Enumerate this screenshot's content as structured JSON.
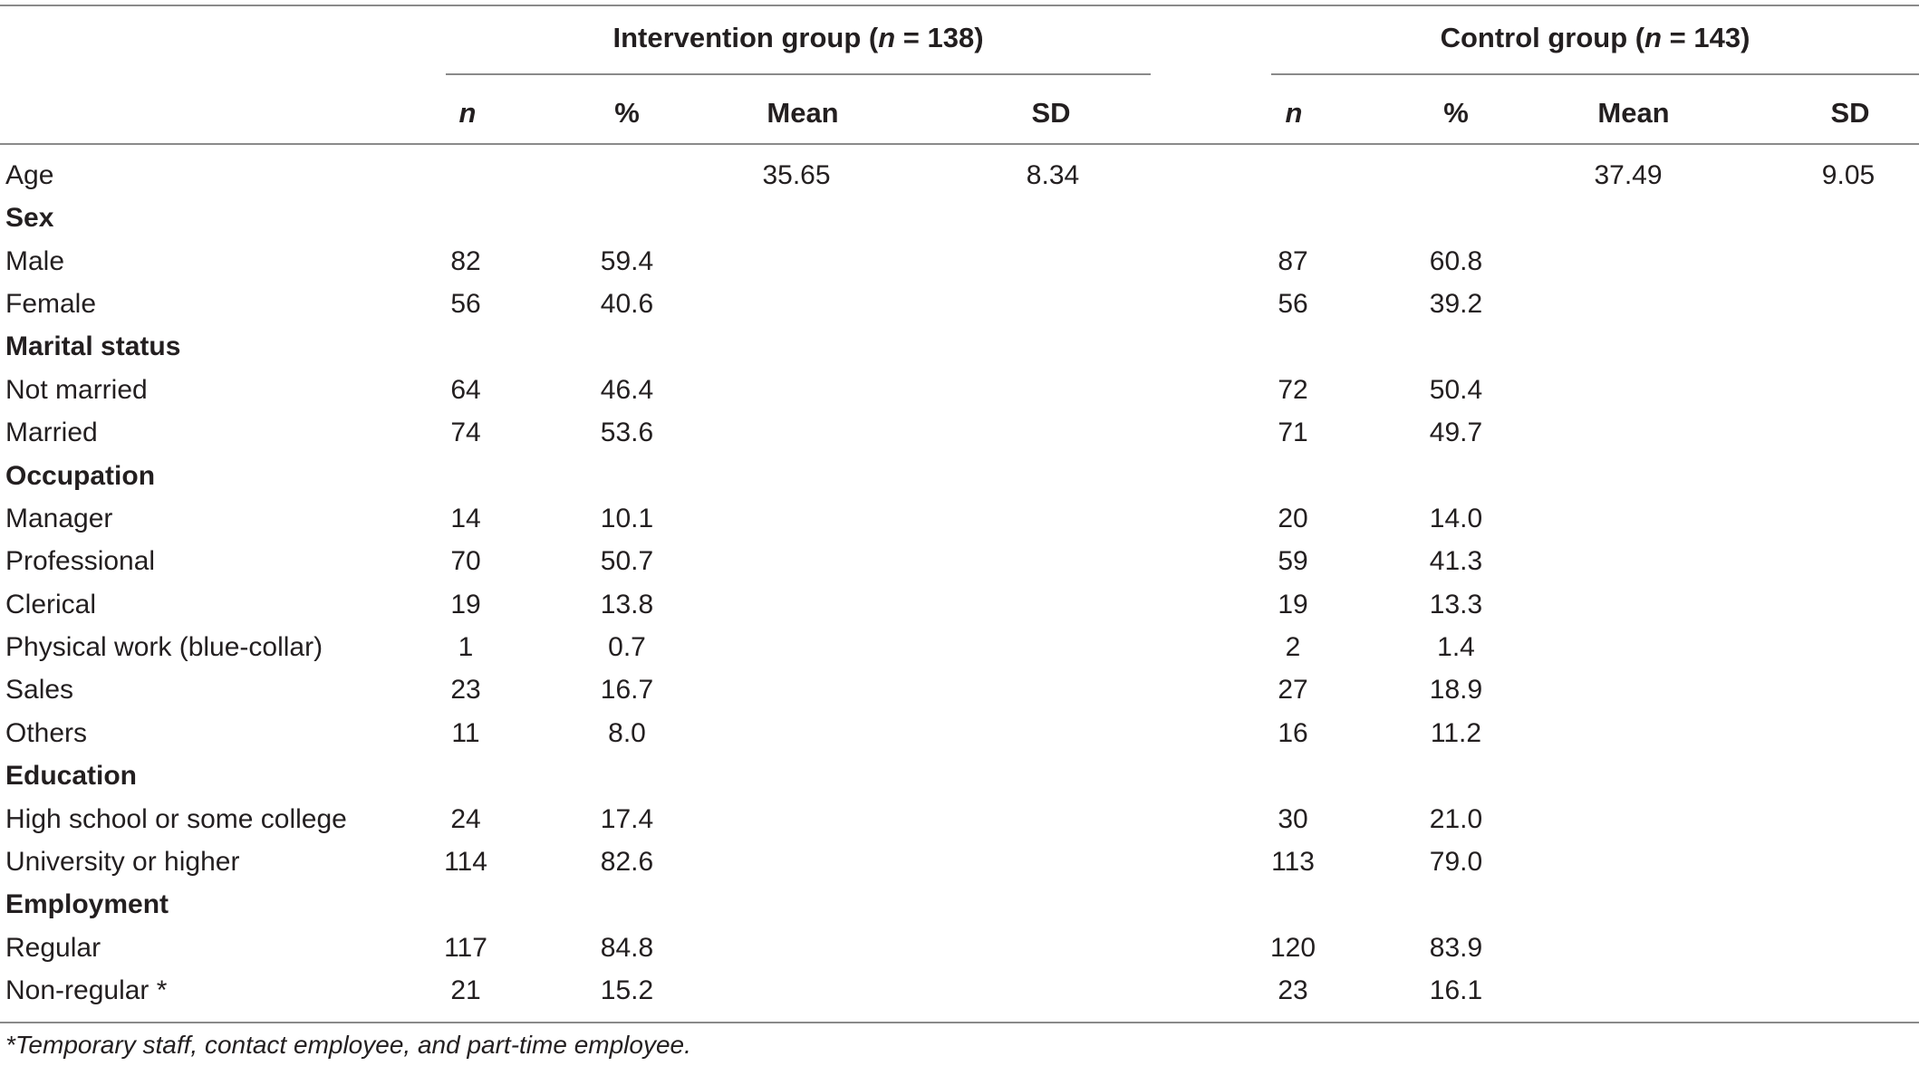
{
  "table": {
    "group_intervention": {
      "label": "Intervention group (",
      "n_sym": "n",
      "n_val": " = 138)"
    },
    "group_control": {
      "label": "Control group (",
      "n_sym": "n",
      "n_val": " = 143)"
    },
    "column_headers": [
      "n",
      "%",
      "Mean",
      "SD",
      "n",
      "%",
      "Mean",
      "SD"
    ],
    "rows": [
      {
        "label": "Age",
        "header": false,
        "cells": [
          "",
          "",
          "35.65",
          "8.34",
          "",
          "",
          "37.49",
          "9.05"
        ]
      },
      {
        "label": "Sex",
        "header": true,
        "cells": [
          "",
          "",
          "",
          "",
          "",
          "",
          "",
          ""
        ]
      },
      {
        "label": "Male",
        "header": false,
        "cells": [
          "82",
          "59.4",
          "",
          "",
          "87",
          "60.8",
          "",
          ""
        ]
      },
      {
        "label": "Female",
        "header": false,
        "cells": [
          "56",
          "40.6",
          "",
          "",
          "56",
          "39.2",
          "",
          ""
        ]
      },
      {
        "label": "Marital status",
        "header": true,
        "cells": [
          "",
          "",
          "",
          "",
          "",
          "",
          "",
          ""
        ]
      },
      {
        "label": "Not married",
        "header": false,
        "cells": [
          "64",
          "46.4",
          "",
          "",
          "72",
          "50.4",
          "",
          ""
        ]
      },
      {
        "label": "Married",
        "header": false,
        "cells": [
          "74",
          "53.6",
          "",
          "",
          "71",
          "49.7",
          "",
          ""
        ]
      },
      {
        "label": "Occupation",
        "header": true,
        "cells": [
          "",
          "",
          "",
          "",
          "",
          "",
          "",
          ""
        ]
      },
      {
        "label": "Manager",
        "header": false,
        "cells": [
          "14",
          "10.1",
          "",
          "",
          "20",
          "14.0",
          "",
          ""
        ]
      },
      {
        "label": "Professional",
        "header": false,
        "cells": [
          "70",
          "50.7",
          "",
          "",
          "59",
          "41.3",
          "",
          ""
        ]
      },
      {
        "label": "Clerical",
        "header": false,
        "cells": [
          "19",
          "13.8",
          "",
          "",
          "19",
          "13.3",
          "",
          ""
        ]
      },
      {
        "label": "Physical work (blue-collar)",
        "header": false,
        "cells": [
          "1",
          "0.7",
          "",
          "",
          "2",
          "1.4",
          "",
          ""
        ]
      },
      {
        "label": "Sales",
        "header": false,
        "cells": [
          "23",
          "16.7",
          "",
          "",
          "27",
          "18.9",
          "",
          ""
        ]
      },
      {
        "label": "Others",
        "header": false,
        "cells": [
          "11",
          "8.0",
          "",
          "",
          "16",
          "11.2",
          "",
          ""
        ]
      },
      {
        "label": "Education",
        "header": true,
        "cells": [
          "",
          "",
          "",
          "",
          "",
          "",
          "",
          ""
        ]
      },
      {
        "label": "High school or some college",
        "header": false,
        "cells": [
          "24",
          "17.4",
          "",
          "",
          "30",
          "21.0",
          "",
          ""
        ]
      },
      {
        "label": "University or higher",
        "header": false,
        "cells": [
          "114",
          "82.6",
          "",
          "",
          "113",
          "79.0",
          "",
          ""
        ]
      },
      {
        "label": "Employment",
        "header": true,
        "cells": [
          "",
          "",
          "",
          "",
          "",
          "",
          "",
          ""
        ]
      },
      {
        "label": "Regular",
        "header": false,
        "cells": [
          "117",
          "84.8",
          "",
          "",
          "120",
          "83.9",
          "",
          ""
        ]
      },
      {
        "label": "Non-regular *",
        "header": false,
        "cells": [
          "21",
          "15.2",
          "",
          "",
          "23",
          "16.1",
          "",
          ""
        ]
      }
    ],
    "footnote": "*Temporary staff, contact employee, and part-time employee."
  }
}
